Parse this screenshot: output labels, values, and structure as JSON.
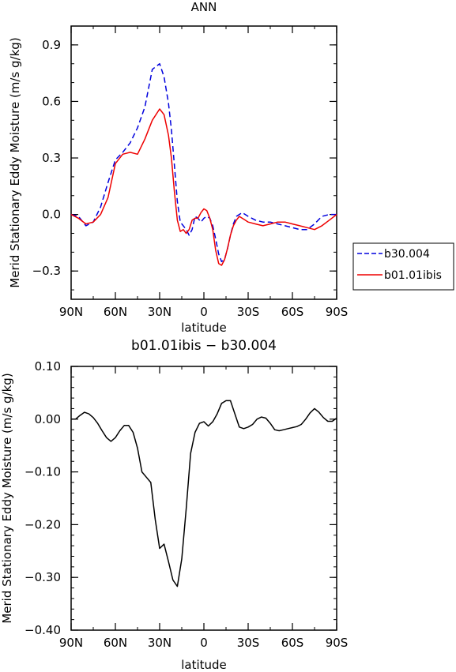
{
  "chart_data": [
    {
      "type": "line",
      "title": "ANN",
      "xlabel": "latitude",
      "ylabel": "Merid Stationary Eddy Moisture (m/s g/kg)",
      "xlim": [
        90,
        -90
      ],
      "ylim": [
        -0.45,
        1.0
      ],
      "xticks": [
        90,
        60,
        30,
        0,
        -30,
        -60,
        -90
      ],
      "xticklabels": [
        "90N",
        "60N",
        "30N",
        "0",
        "30S",
        "60S",
        "90S"
      ],
      "yticks": [
        -0.3,
        0.0,
        0.3,
        0.6,
        0.9
      ],
      "yticklabels": [
        "−0.3",
        "0.0",
        "0.3",
        "0.6",
        "0.9"
      ],
      "legend_position": "outside-right",
      "x": [
        90,
        85,
        80,
        75,
        70,
        65,
        60,
        55,
        50,
        45,
        40,
        35,
        30,
        27,
        24,
        22,
        20,
        18,
        16,
        14,
        12,
        10,
        8,
        6,
        4,
        2,
        0,
        -2,
        -4,
        -6,
        -8,
        -10,
        -12,
        -14,
        -16,
        -18,
        -20,
        -22,
        -24,
        -26,
        -28,
        -30,
        -35,
        -40,
        -45,
        -50,
        -55,
        -60,
        -65,
        -70,
        -75,
        -80,
        -85,
        -90
      ],
      "series": [
        {
          "name": "b30.004",
          "color": "#0000dd",
          "dash": "dashed",
          "values": [
            0.0,
            -0.01,
            -0.06,
            -0.04,
            0.04,
            0.17,
            0.29,
            0.33,
            0.38,
            0.46,
            0.57,
            0.77,
            0.8,
            0.73,
            0.59,
            0.45,
            0.26,
            0.07,
            -0.04,
            -0.06,
            -0.08,
            -0.11,
            -0.08,
            -0.01,
            -0.02,
            -0.04,
            -0.02,
            -0.01,
            -0.02,
            -0.06,
            -0.13,
            -0.21,
            -0.25,
            -0.24,
            -0.18,
            -0.11,
            -0.05,
            -0.01,
            0.0,
            0.01,
            0.0,
            -0.01,
            -0.03,
            -0.04,
            -0.04,
            -0.05,
            -0.06,
            -0.07,
            -0.08,
            -0.08,
            -0.05,
            -0.01,
            0.0,
            0.0
          ]
        },
        {
          "name": "b01.01ibis",
          "color": "#ee0000",
          "dash": "solid",
          "values": [
            0.0,
            -0.02,
            -0.05,
            -0.04,
            0.0,
            0.09,
            0.27,
            0.32,
            0.33,
            0.32,
            0.4,
            0.5,
            0.56,
            0.53,
            0.42,
            0.3,
            0.12,
            -0.03,
            -0.09,
            -0.08,
            -0.1,
            -0.08,
            -0.03,
            -0.02,
            -0.02,
            0.01,
            0.03,
            0.02,
            -0.02,
            -0.08,
            -0.19,
            -0.26,
            -0.27,
            -0.24,
            -0.18,
            -0.11,
            -0.06,
            -0.03,
            -0.01,
            -0.02,
            -0.03,
            -0.04,
            -0.05,
            -0.06,
            -0.05,
            -0.04,
            -0.04,
            -0.05,
            -0.06,
            -0.07,
            -0.08,
            -0.06,
            -0.03,
            0.0
          ]
        }
      ]
    },
    {
      "type": "line",
      "title": "b01.01ibis − b30.004",
      "xlabel": "latitude",
      "ylabel": "Merid Stationary Eddy Moisture (m/s g/kg)",
      "xlim": [
        90,
        -90
      ],
      "ylim": [
        -0.4,
        0.1
      ],
      "xticks": [
        90,
        60,
        30,
        0,
        -30,
        -60,
        -90
      ],
      "xticklabels": [
        "90N",
        "60N",
        "30N",
        "0",
        "30S",
        "60S",
        "90S"
      ],
      "yticks": [
        0.1,
        0.0,
        -0.1,
        -0.2,
        -0.3,
        -0.4
      ],
      "yticklabels": [
        "0.10",
        "0.00",
        "−0.10",
        "−0.20",
        "−0.30",
        "−0.40"
      ],
      "x": [
        90,
        87,
        84,
        81,
        78,
        75,
        72,
        69,
        66,
        63,
        60,
        57,
        54,
        51,
        48,
        45,
        42,
        39,
        36,
        33,
        30,
        27,
        24,
        21,
        18,
        15,
        12,
        9,
        6,
        3,
        0,
        -3,
        -6,
        -9,
        -12,
        -15,
        -18,
        -21,
        -24,
        -27,
        -30,
        -33,
        -36,
        -39,
        -42,
        -45,
        -48,
        -51,
        -54,
        -57,
        -60,
        -63,
        -66,
        -69,
        -72,
        -75,
        -78,
        -81,
        -84,
        -87,
        -90
      ],
      "series": [
        {
          "name": "difference",
          "color": "#000000",
          "dash": "solid",
          "values": [
            0.0,
            0.0,
            0.007,
            0.013,
            0.01,
            0.003,
            -0.008,
            -0.022,
            -0.035,
            -0.042,
            -0.035,
            -0.022,
            -0.012,
            -0.012,
            -0.025,
            -0.055,
            -0.1,
            -0.11,
            -0.12,
            -0.19,
            -0.245,
            -0.237,
            -0.27,
            -0.305,
            -0.317,
            -0.265,
            -0.17,
            -0.065,
            -0.025,
            -0.008,
            -0.005,
            -0.013,
            -0.005,
            0.01,
            0.03,
            0.035,
            0.035,
            0.01,
            -0.015,
            -0.018,
            -0.015,
            -0.01,
            0.0,
            0.004,
            0.002,
            -0.008,
            -0.02,
            -0.022,
            -0.02,
            -0.018,
            -0.016,
            -0.014,
            -0.01,
            0.0,
            0.012,
            0.02,
            0.013,
            0.003,
            -0.004,
            -0.004,
            0.002
          ]
        }
      ]
    }
  ]
}
